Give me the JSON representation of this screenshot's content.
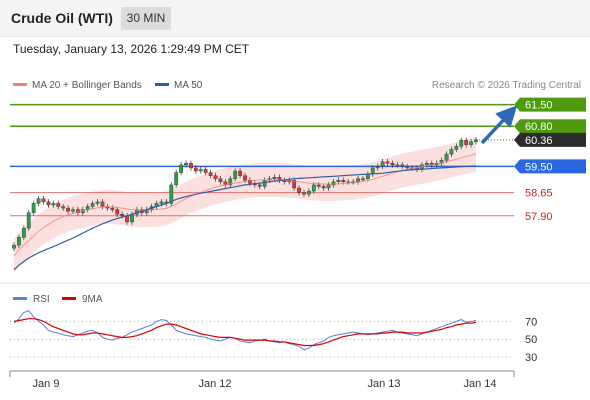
{
  "header": {
    "title": "Crude Oil (WTI)",
    "timeframe": "30 MIN"
  },
  "datetime": "Tuesday, January 13, 2026 1:29:49 PM CET",
  "legend": {
    "bollinger": {
      "label": "MA 20 + Bollinger Bands",
      "color": "#f08080"
    },
    "ma50": {
      "label": "MA 50",
      "color": "#2f5fa7"
    }
  },
  "credit": "Research © 2026 Trading Central",
  "rsi_legend": {
    "rsi": {
      "label": "RSI",
      "color": "#5b7fd6"
    },
    "ma9": {
      "label": "9MA",
      "color": "#dd0000"
    }
  },
  "chart_data": [
    {
      "type": "candlestick",
      "x_labels": [
        "Jan 9",
        "Jan 12",
        "Jan 13",
        "Jan 14"
      ],
      "current_price": "60.36",
      "price_levels": [
        {
          "label": "61.50",
          "value": 61.5,
          "role": "resistance",
          "color": "#4f9a0f"
        },
        {
          "label": "60.80",
          "value": 60.8,
          "role": "resistance",
          "color": "#4f9a0f"
        },
        {
          "label": "59.50",
          "value": 59.5,
          "role": "pivot",
          "color": "#2a66e0"
        },
        {
          "label": "58.65",
          "value": 58.65,
          "role": "support",
          "color": "#e07070"
        },
        {
          "label": "57.90",
          "value": 57.9,
          "role": "support",
          "color": "#e07070"
        }
      ],
      "close_series": [
        56.95,
        57.2,
        57.5,
        58.0,
        58.3,
        58.45,
        58.35,
        58.25,
        58.3,
        58.2,
        58.15,
        58.05,
        58.1,
        58.0,
        58.1,
        58.2,
        58.3,
        58.35,
        58.2,
        58.15,
        58.1,
        57.95,
        57.9,
        57.7,
        57.95,
        58.1,
        58.0,
        58.1,
        58.2,
        58.3,
        58.35,
        58.3,
        58.9,
        59.3,
        59.55,
        59.6,
        59.45,
        59.35,
        59.4,
        59.3,
        59.2,
        59.1,
        59.0,
        58.9,
        59.1,
        59.35,
        59.2,
        59.05,
        58.95,
        58.9,
        58.85,
        59.05,
        59.1,
        59.15,
        59.05,
        59.0,
        59.05,
        58.8,
        58.65,
        58.6,
        58.7,
        58.9,
        58.85,
        58.8,
        58.9,
        59.0,
        59.05,
        59.0,
        59.0,
        59.0,
        59.1,
        59.1,
        59.25,
        59.45,
        59.5,
        59.65,
        59.6,
        59.55,
        59.55,
        59.5,
        59.45,
        59.45,
        59.4,
        59.55,
        59.6,
        59.55,
        59.6,
        59.7,
        59.9,
        60.05,
        60.15,
        60.35,
        60.2,
        60.3,
        60.36
      ],
      "ma50_series": [
        56.15,
        56.3,
        56.42,
        56.53,
        56.62,
        56.7,
        56.77,
        56.84,
        56.9,
        56.97,
        57.04,
        57.11,
        57.18,
        57.26,
        57.34,
        57.42,
        57.5,
        57.57,
        57.64,
        57.7,
        57.76,
        57.81,
        57.86,
        57.9,
        57.95,
        58.0,
        58.05,
        58.1,
        58.15,
        58.2,
        58.25,
        58.3,
        58.37,
        58.43,
        58.48,
        58.52,
        58.56,
        58.6,
        58.63,
        58.66,
        58.69,
        58.72,
        58.75,
        58.78,
        58.81,
        58.84,
        58.87,
        58.9,
        58.92,
        58.94,
        58.96,
        58.98,
        59.0,
        59.02,
        59.04,
        59.06,
        59.08,
        59.1,
        59.11,
        59.12,
        59.13,
        59.14,
        59.15,
        59.16,
        59.17,
        59.18,
        59.19,
        59.2,
        59.21,
        59.22,
        59.23,
        59.24,
        59.25,
        59.26,
        59.27,
        59.28,
        59.3,
        59.32,
        59.34,
        59.36,
        59.38,
        59.39,
        59.4,
        59.41,
        59.42,
        59.43,
        59.44,
        59.45,
        59.46,
        59.47,
        59.48,
        59.49,
        59.5,
        59.51,
        59.52
      ],
      "ma20_series": [
        56.6,
        56.8,
        56.95,
        57.1,
        57.25,
        57.4,
        57.52,
        57.62,
        57.72,
        57.8,
        57.87,
        57.93,
        57.98,
        58.02,
        58.06,
        58.1,
        58.13,
        58.16,
        58.18,
        58.2,
        58.19,
        58.17,
        58.15,
        58.12,
        58.1,
        58.09,
        58.08,
        58.08,
        58.09,
        58.1,
        58.12,
        58.14,
        58.2,
        58.28,
        58.37,
        58.46,
        58.54,
        58.6,
        58.66,
        58.72,
        58.77,
        58.82,
        58.86,
        58.9,
        58.93,
        58.96,
        58.99,
        59.01,
        59.03,
        59.05,
        59.06,
        59.06,
        59.06,
        59.06,
        59.05,
        59.05,
        59.04,
        59.02,
        59.0,
        58.98,
        58.96,
        58.95,
        58.94,
        58.93,
        58.93,
        58.93,
        58.94,
        58.95,
        58.96,
        58.97,
        58.99,
        59.01,
        59.04,
        59.08,
        59.13,
        59.18,
        59.23,
        59.28,
        59.32,
        59.36,
        59.4,
        59.43,
        59.46,
        59.49,
        59.52,
        59.55,
        59.58,
        59.61,
        59.65,
        59.69,
        59.73,
        59.78,
        59.82,
        59.86,
        59.9
      ],
      "band_width": 0.55
    },
    {
      "type": "line",
      "x_labels": [
        "Jan 9",
        "Jan 12",
        "Jan 13",
        "Jan 14"
      ],
      "y_ticks": [
        70,
        50,
        30
      ],
      "ylim": [
        20,
        85
      ],
      "series": [
        {
          "name": "RSI",
          "values": [
            68,
            73,
            80,
            82,
            75,
            70,
            66,
            60,
            58,
            57,
            55,
            54,
            53,
            55,
            57,
            59,
            60,
            57,
            52,
            50,
            49,
            51,
            52,
            55,
            58,
            60,
            62,
            64,
            66,
            70,
            72,
            71,
            66,
            60,
            58,
            56,
            55,
            54,
            53,
            52,
            50,
            49,
            48,
            50,
            52,
            51,
            48,
            47,
            46,
            48,
            49,
            50,
            48,
            47,
            46,
            47,
            45,
            44,
            42,
            38,
            40,
            44,
            46,
            48,
            52,
            54,
            55,
            56,
            57,
            58,
            57,
            56,
            55,
            56,
            57,
            58,
            59,
            60,
            58,
            57,
            56,
            55,
            54,
            56,
            58,
            60,
            62,
            64,
            66,
            68,
            70,
            72,
            69,
            70,
            71
          ]
        },
        {
          "name": "9MA",
          "values": [
            70,
            71,
            72,
            73,
            73,
            72,
            70,
            67,
            64,
            62,
            60,
            58,
            56,
            55,
            55,
            56,
            57,
            57,
            56,
            55,
            54,
            53,
            52,
            52,
            53,
            54,
            56,
            58,
            60,
            63,
            65,
            67,
            67,
            66,
            64,
            62,
            60,
            58,
            56,
            55,
            54,
            53,
            52,
            52,
            52,
            51,
            50,
            49,
            49,
            49,
            49,
            49,
            48,
            48,
            47,
            47,
            46,
            45,
            44,
            43,
            43,
            43,
            44,
            45,
            47,
            49,
            51,
            53,
            54,
            55,
            56,
            56,
            56,
            56,
            56,
            57,
            57,
            58,
            58,
            58,
            57,
            57,
            57,
            57,
            58,
            59,
            60,
            61,
            63,
            64,
            66,
            67,
            68,
            68,
            69
          ]
        }
      ]
    }
  ]
}
